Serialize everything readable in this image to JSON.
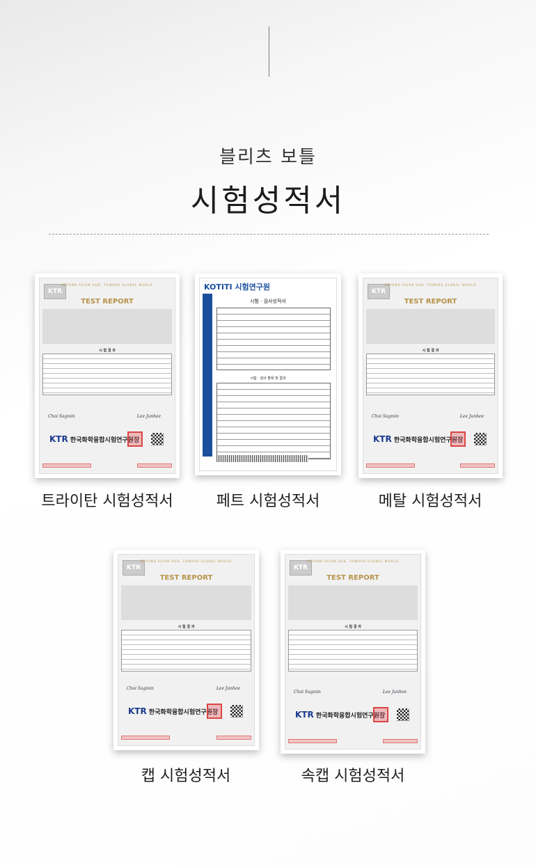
{
  "header": {
    "subtitle": "블리츠 보틀",
    "title": "시험성적서"
  },
  "ktr_doc": {
    "slogan": "BEYOND ASIAN HUB, TOWARD GLOBAL WORLD",
    "report_title": "TEST REPORT",
    "logo": "KTR",
    "results_heading": "시 험 결 과",
    "sign_left": "Choi Sagmin",
    "sign_right": "Lee Junhee",
    "org_prefix": "KTR",
    "org_name": "한국화학융합시험연구원장"
  },
  "kotiti_doc": {
    "logo": "KOTITI 시험연구원",
    "doc_title": "시험 · 검사성적서",
    "section": "시험 · 검사 항목 및 결과"
  },
  "reports": [
    {
      "caption": "트라이탄 시험성적서",
      "type": "ktr"
    },
    {
      "caption": "페트 시험성적서",
      "type": "kotiti"
    },
    {
      "caption": "메탈 시험성적서",
      "type": "ktr"
    },
    {
      "caption": "캡 시험성적서",
      "type": "ktr"
    },
    {
      "caption": "속캡 시험성적서",
      "type": "ktr"
    }
  ]
}
